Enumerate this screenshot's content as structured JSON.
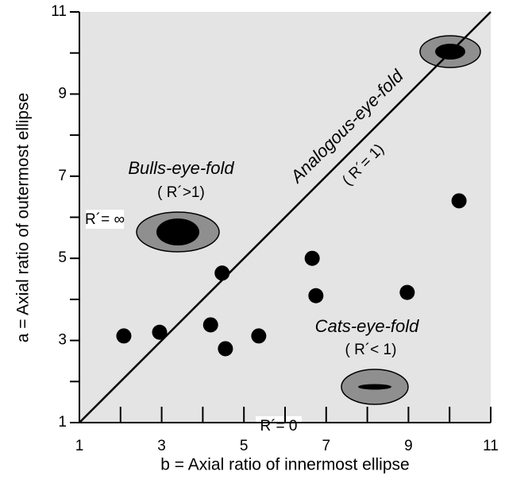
{
  "chart_data": {
    "type": "scatter",
    "xlabel": "b = Axial ratio of innermost ellipse",
    "ylabel": "a = Axial ratio of outermost ellipse",
    "x": [
      2.08,
      2.95,
      4.19,
      4.55,
      4.47,
      5.36,
      6.66,
      6.75,
      8.97,
      10.23
    ],
    "values": [
      3.11,
      3.2,
      3.38,
      2.8,
      4.64,
      3.11,
      5.0,
      4.09,
      4.17,
      6.4
    ],
    "color": "#000000",
    "xlim": [
      1,
      11
    ],
    "ylim": [
      1,
      11
    ],
    "xticks": [
      1,
      3,
      5,
      7,
      9,
      11
    ],
    "yticks": [
      1,
      3,
      5,
      7,
      9,
      11
    ],
    "minor_xticks": [
      2,
      4,
      6,
      8,
      10
    ],
    "minor_yticks": [
      2,
      4,
      6,
      8,
      10
    ],
    "annotations": [
      "Bulls-eye-fold",
      "( R´>1)",
      "Analogous-eye-fold",
      "( R´= 1)",
      "Cats-eye-fold",
      "( R´< 1)",
      "R´= ∞",
      "R´= 0"
    ]
  }
}
